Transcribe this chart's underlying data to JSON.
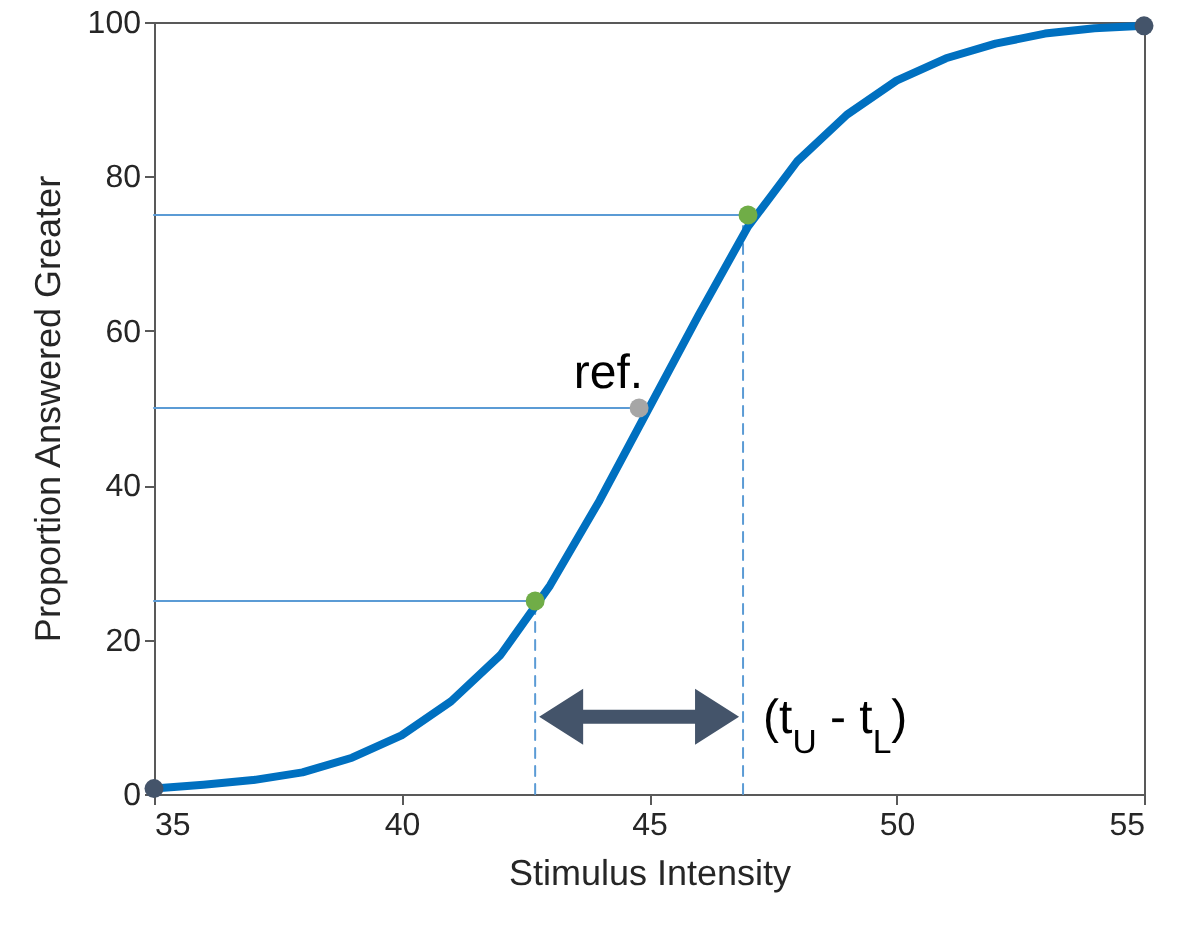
{
  "chart_data": {
    "type": "line",
    "xlabel": "Stimulus Intensity",
    "ylabel": "Proportion Answered Greater",
    "xlim": [
      35,
      55
    ],
    "xticks": [
      35,
      40,
      45,
      50,
      55
    ],
    "ylim": [
      0,
      100
    ],
    "yticks": [
      0,
      20,
      40,
      60,
      80,
      100
    ],
    "grid": false,
    "series": [
      {
        "type": "line",
        "color": "#5b9bd5",
        "x": [
          35,
          42.7
        ],
        "values": [
          25,
          25
        ]
      },
      {
        "type": "line",
        "color": "#5b9bd5",
        "x": [
          35,
          44.8
        ],
        "values": [
          50,
          50
        ]
      },
      {
        "type": "line",
        "color": "#5b9bd5",
        "x": [
          35,
          47
        ],
        "values": [
          75,
          75
        ]
      },
      {
        "type": "line",
        "color": "#5b9bd5",
        "line_style": "dashed",
        "x": [
          42.7,
          42.7
        ],
        "values": [
          0,
          25
        ]
      },
      {
        "type": "line",
        "color": "#5b9bd5",
        "line_style": "dashed",
        "x": [
          46.9,
          46.9
        ],
        "values": [
          0,
          75
        ]
      },
      {
        "type": "line",
        "color": "#0070c0",
        "x": [
          35,
          36,
          37,
          38,
          39,
          40,
          41,
          42,
          43,
          44,
          45,
          46,
          47,
          48,
          49,
          50,
          51,
          52,
          53,
          54,
          55
        ],
        "values": [
          0.7,
          1.2,
          1.8,
          2.8,
          4.7,
          7.6,
          12,
          18,
          27,
          38,
          50,
          62,
          73.5,
          82,
          88,
          92.4,
          95.3,
          97.2,
          98.5,
          99.2,
          99.5
        ]
      },
      {
        "type": "scatter",
        "marker": "circle",
        "color": "#44546a",
        "x": [
          35,
          55
        ],
        "values": [
          0.7,
          99.5
        ]
      },
      {
        "type": "scatter",
        "marker": "circle",
        "color": "#70ad47",
        "x": [
          42.7,
          47
        ],
        "values": [
          25,
          75
        ]
      },
      {
        "type": "scatter",
        "marker": "circle",
        "color": "#a6a6a6",
        "x": [
          44.8
        ],
        "values": [
          50
        ]
      }
    ],
    "annotations": [
      {
        "text": "ref.",
        "x": 44.8,
        "y": 50
      },
      {
        "text": "(t$_{U}$ - t$_{L}$)",
        "x": 46.9,
        "y": 10
      }
    ]
  }
}
